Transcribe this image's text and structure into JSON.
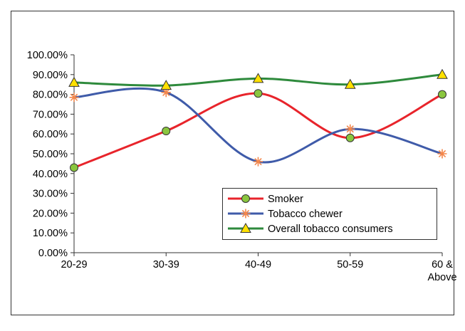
{
  "chart_data": {
    "type": "line",
    "title": "",
    "xlabel": "",
    "ylabel": "",
    "categories": [
      [
        "20-29"
      ],
      [
        "30-39"
      ],
      [
        "40-49"
      ],
      [
        "50-59"
      ],
      [
        "60 &",
        "Above"
      ]
    ],
    "y_ticks": [
      "0.00%",
      "10.00%",
      "20.00%",
      "30.00%",
      "40.00%",
      "50.00%",
      "60.00%",
      "70.00%",
      "80.00%",
      "90.00%",
      "100.00%"
    ],
    "ylim": [
      0,
      100
    ],
    "grid": false,
    "smoothed": true,
    "legend_position": "bottom-right",
    "series": [
      {
        "name": "Smoker",
        "values": [
          43.0,
          61.5,
          80.5,
          58.0,
          80.0
        ],
        "color": "#e8242b",
        "marker": "circle",
        "marker_color": "#8ac63f"
      },
      {
        "name": "Tobacco chewer",
        "values": [
          78.5,
          81.0,
          46.0,
          62.5,
          50.0
        ],
        "color": "#3f5ba9",
        "marker": "asterisk",
        "marker_color": "#f4874b"
      },
      {
        "name": "Overall tobacco consumers",
        "values": [
          86.0,
          84.5,
          88.0,
          85.0,
          90.0
        ],
        "color": "#2e8a3c",
        "marker": "triangle",
        "marker_color": "#ffe100"
      }
    ]
  }
}
